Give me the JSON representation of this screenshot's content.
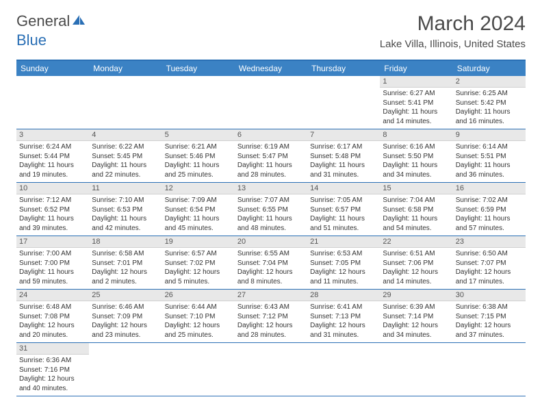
{
  "logo": {
    "text1": "General",
    "text2": "Blue"
  },
  "title": "March 2024",
  "location": "Lake Villa, Illinois, United States",
  "colors": {
    "header_bg": "#3b82c4",
    "border": "#2a6fb5",
    "daynum_bg": "#e8e8e8",
    "text": "#333333",
    "title": "#4a4a4a"
  },
  "daysOfWeek": [
    "Sunday",
    "Monday",
    "Tuesday",
    "Wednesday",
    "Thursday",
    "Friday",
    "Saturday"
  ],
  "weeks": [
    [
      {
        "n": "",
        "sr": "",
        "ss": "",
        "dl": ""
      },
      {
        "n": "",
        "sr": "",
        "ss": "",
        "dl": ""
      },
      {
        "n": "",
        "sr": "",
        "ss": "",
        "dl": ""
      },
      {
        "n": "",
        "sr": "",
        "ss": "",
        "dl": ""
      },
      {
        "n": "",
        "sr": "",
        "ss": "",
        "dl": ""
      },
      {
        "n": "1",
        "sr": "Sunrise: 6:27 AM",
        "ss": "Sunset: 5:41 PM",
        "dl": "Daylight: 11 hours and 14 minutes."
      },
      {
        "n": "2",
        "sr": "Sunrise: 6:25 AM",
        "ss": "Sunset: 5:42 PM",
        "dl": "Daylight: 11 hours and 16 minutes."
      }
    ],
    [
      {
        "n": "3",
        "sr": "Sunrise: 6:24 AM",
        "ss": "Sunset: 5:44 PM",
        "dl": "Daylight: 11 hours and 19 minutes."
      },
      {
        "n": "4",
        "sr": "Sunrise: 6:22 AM",
        "ss": "Sunset: 5:45 PM",
        "dl": "Daylight: 11 hours and 22 minutes."
      },
      {
        "n": "5",
        "sr": "Sunrise: 6:21 AM",
        "ss": "Sunset: 5:46 PM",
        "dl": "Daylight: 11 hours and 25 minutes."
      },
      {
        "n": "6",
        "sr": "Sunrise: 6:19 AM",
        "ss": "Sunset: 5:47 PM",
        "dl": "Daylight: 11 hours and 28 minutes."
      },
      {
        "n": "7",
        "sr": "Sunrise: 6:17 AM",
        "ss": "Sunset: 5:48 PM",
        "dl": "Daylight: 11 hours and 31 minutes."
      },
      {
        "n": "8",
        "sr": "Sunrise: 6:16 AM",
        "ss": "Sunset: 5:50 PM",
        "dl": "Daylight: 11 hours and 34 minutes."
      },
      {
        "n": "9",
        "sr": "Sunrise: 6:14 AM",
        "ss": "Sunset: 5:51 PM",
        "dl": "Daylight: 11 hours and 36 minutes."
      }
    ],
    [
      {
        "n": "10",
        "sr": "Sunrise: 7:12 AM",
        "ss": "Sunset: 6:52 PM",
        "dl": "Daylight: 11 hours and 39 minutes."
      },
      {
        "n": "11",
        "sr": "Sunrise: 7:10 AM",
        "ss": "Sunset: 6:53 PM",
        "dl": "Daylight: 11 hours and 42 minutes."
      },
      {
        "n": "12",
        "sr": "Sunrise: 7:09 AM",
        "ss": "Sunset: 6:54 PM",
        "dl": "Daylight: 11 hours and 45 minutes."
      },
      {
        "n": "13",
        "sr": "Sunrise: 7:07 AM",
        "ss": "Sunset: 6:55 PM",
        "dl": "Daylight: 11 hours and 48 minutes."
      },
      {
        "n": "14",
        "sr": "Sunrise: 7:05 AM",
        "ss": "Sunset: 6:57 PM",
        "dl": "Daylight: 11 hours and 51 minutes."
      },
      {
        "n": "15",
        "sr": "Sunrise: 7:04 AM",
        "ss": "Sunset: 6:58 PM",
        "dl": "Daylight: 11 hours and 54 minutes."
      },
      {
        "n": "16",
        "sr": "Sunrise: 7:02 AM",
        "ss": "Sunset: 6:59 PM",
        "dl": "Daylight: 11 hours and 57 minutes."
      }
    ],
    [
      {
        "n": "17",
        "sr": "Sunrise: 7:00 AM",
        "ss": "Sunset: 7:00 PM",
        "dl": "Daylight: 11 hours and 59 minutes."
      },
      {
        "n": "18",
        "sr": "Sunrise: 6:58 AM",
        "ss": "Sunset: 7:01 PM",
        "dl": "Daylight: 12 hours and 2 minutes."
      },
      {
        "n": "19",
        "sr": "Sunrise: 6:57 AM",
        "ss": "Sunset: 7:02 PM",
        "dl": "Daylight: 12 hours and 5 minutes."
      },
      {
        "n": "20",
        "sr": "Sunrise: 6:55 AM",
        "ss": "Sunset: 7:04 PM",
        "dl": "Daylight: 12 hours and 8 minutes."
      },
      {
        "n": "21",
        "sr": "Sunrise: 6:53 AM",
        "ss": "Sunset: 7:05 PM",
        "dl": "Daylight: 12 hours and 11 minutes."
      },
      {
        "n": "22",
        "sr": "Sunrise: 6:51 AM",
        "ss": "Sunset: 7:06 PM",
        "dl": "Daylight: 12 hours and 14 minutes."
      },
      {
        "n": "23",
        "sr": "Sunrise: 6:50 AM",
        "ss": "Sunset: 7:07 PM",
        "dl": "Daylight: 12 hours and 17 minutes."
      }
    ],
    [
      {
        "n": "24",
        "sr": "Sunrise: 6:48 AM",
        "ss": "Sunset: 7:08 PM",
        "dl": "Daylight: 12 hours and 20 minutes."
      },
      {
        "n": "25",
        "sr": "Sunrise: 6:46 AM",
        "ss": "Sunset: 7:09 PM",
        "dl": "Daylight: 12 hours and 23 minutes."
      },
      {
        "n": "26",
        "sr": "Sunrise: 6:44 AM",
        "ss": "Sunset: 7:10 PM",
        "dl": "Daylight: 12 hours and 25 minutes."
      },
      {
        "n": "27",
        "sr": "Sunrise: 6:43 AM",
        "ss": "Sunset: 7:12 PM",
        "dl": "Daylight: 12 hours and 28 minutes."
      },
      {
        "n": "28",
        "sr": "Sunrise: 6:41 AM",
        "ss": "Sunset: 7:13 PM",
        "dl": "Daylight: 12 hours and 31 minutes."
      },
      {
        "n": "29",
        "sr": "Sunrise: 6:39 AM",
        "ss": "Sunset: 7:14 PM",
        "dl": "Daylight: 12 hours and 34 minutes."
      },
      {
        "n": "30",
        "sr": "Sunrise: 6:38 AM",
        "ss": "Sunset: 7:15 PM",
        "dl": "Daylight: 12 hours and 37 minutes."
      }
    ],
    [
      {
        "n": "31",
        "sr": "Sunrise: 6:36 AM",
        "ss": "Sunset: 7:16 PM",
        "dl": "Daylight: 12 hours and 40 minutes."
      },
      {
        "n": "",
        "sr": "",
        "ss": "",
        "dl": ""
      },
      {
        "n": "",
        "sr": "",
        "ss": "",
        "dl": ""
      },
      {
        "n": "",
        "sr": "",
        "ss": "",
        "dl": ""
      },
      {
        "n": "",
        "sr": "",
        "ss": "",
        "dl": ""
      },
      {
        "n": "",
        "sr": "",
        "ss": "",
        "dl": ""
      },
      {
        "n": "",
        "sr": "",
        "ss": "",
        "dl": ""
      }
    ]
  ]
}
